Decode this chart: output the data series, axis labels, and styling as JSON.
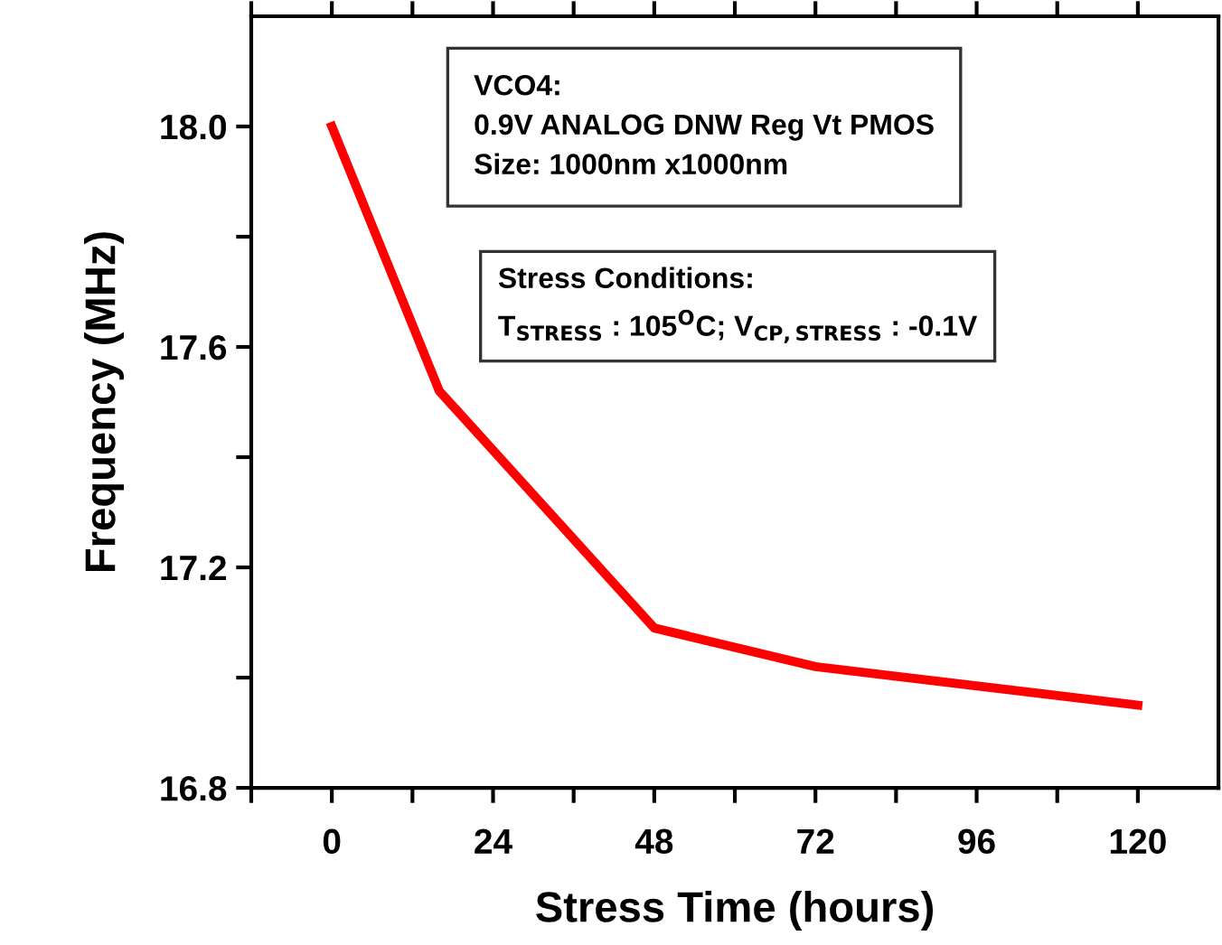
{
  "chart_data": {
    "type": "line",
    "xlabel": "Stress Time (hours)",
    "ylabel": "Frequency (MHz)",
    "x": [
      0,
      16,
      48,
      72,
      120
    ],
    "series": [
      {
        "color": "#ff0000",
        "values": [
          18.0,
          17.52,
          17.09,
          17.02,
          16.95
        ]
      }
    ],
    "xlim": [
      -12,
      132
    ],
    "ylim": [
      16.8,
      18.2
    ],
    "xticks": [
      {
        "value": -12,
        "label": null
      },
      0,
      {
        "value": 12,
        "label": null
      },
      24,
      {
        "value": 36,
        "label": null
      },
      48,
      {
        "value": 60,
        "label": null
      },
      72,
      {
        "value": 84,
        "label": null
      },
      96,
      {
        "value": 108,
        "label": null
      },
      120
    ],
    "yticks": [
      16.8,
      {
        "value": 17.0,
        "label": null
      },
      17.2,
      {
        "value": 17.4,
        "label": null
      },
      17.6,
      {
        "value": 17.8,
        "label": null
      },
      {
        "value": 18.0,
        "label": "18.0"
      }
    ],
    "marker": "none",
    "line_style": "solid",
    "grid": false,
    "legend": false,
    "annotations": [
      "VCO4:\n0.9V ANALOG DNW Reg Vt PMOS\nSize: 1000nm x1000nm",
      "Stress Conditions:\nT$_{STRESS}$ : 105$^{O}$C; V$_{CP,STRESS}$ : -0.1V"
    ]
  }
}
